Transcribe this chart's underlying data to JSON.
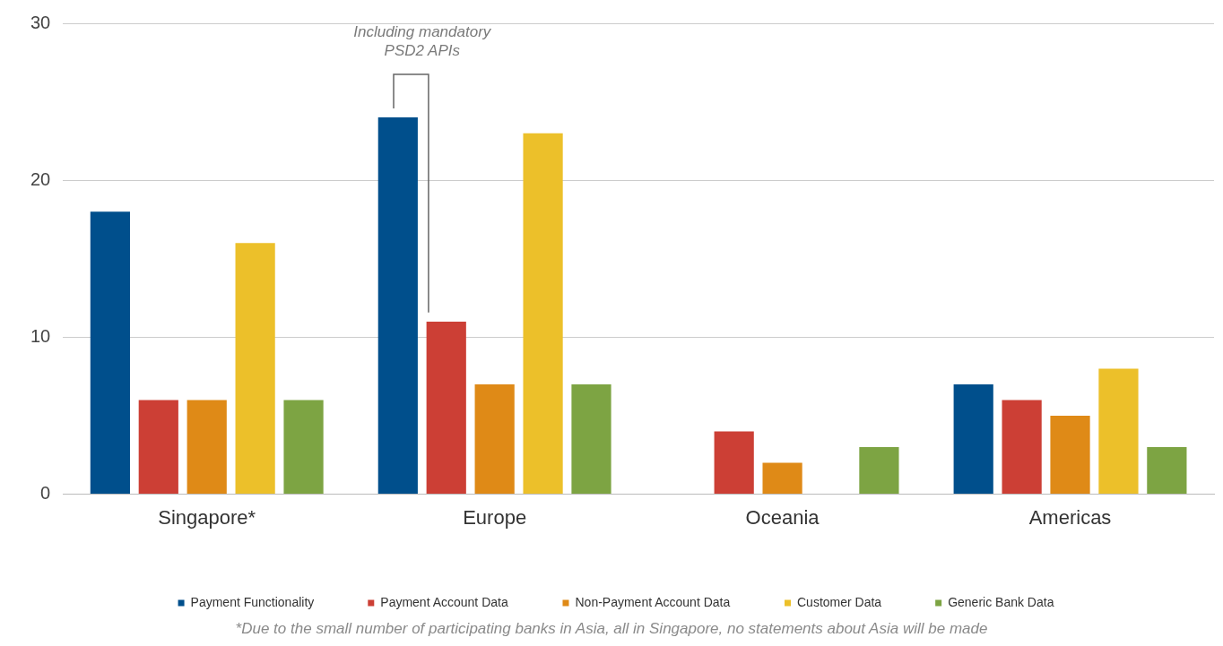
{
  "chart_data": {
    "type": "bar",
    "categories": [
      "Singapore*",
      "Europe",
      "Oceania",
      "Americas"
    ],
    "series": [
      {
        "name": "Payment Functionality",
        "color": "#004f8c",
        "values": [
          18,
          24,
          0,
          7
        ]
      },
      {
        "name": "Payment Account Data",
        "color": "#cc3f35",
        "values": [
          6,
          11,
          4,
          6
        ]
      },
      {
        "name": "Non-Payment Account Data",
        "color": "#df8a17",
        "values": [
          6,
          7,
          2,
          5
        ]
      },
      {
        "name": "Customer Data",
        "color": "#ecc02a",
        "values": [
          16,
          23,
          0,
          8
        ]
      },
      {
        "name": "Generic Bank Data",
        "color": "#7da443",
        "values": [
          6,
          7,
          3,
          3
        ]
      }
    ],
    "ylim": [
      0,
      30
    ],
    "yticks": [
      0,
      10,
      20,
      30
    ],
    "grid": "y",
    "legend": "bottom",
    "annotations": [
      "Including mandatory PSD2 APIs",
      "*Due to the small number of participating banks in Asia, all in Singapore, no statements about Asia will be made"
    ]
  }
}
